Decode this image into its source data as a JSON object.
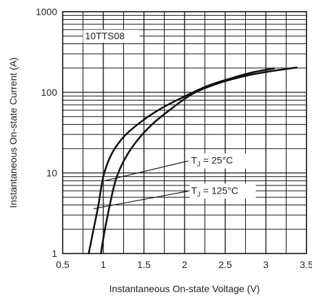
{
  "chart_data": {
    "type": "line",
    "title": "",
    "xlabel": "Instantaneous On-state Voltage (V)",
    "ylabel": "Instantaneous On-state Current (A)",
    "xlim": [
      0.5,
      3.5
    ],
    "ylim": [
      1,
      1000
    ],
    "yscale": "log",
    "grid": true,
    "x_ticks": [
      "0.5",
      "1",
      "1.5",
      "2",
      "2.5",
      "3",
      "3.5"
    ],
    "y_ticks": [
      "1",
      "10",
      "100",
      "1000"
    ],
    "part_label": "10TTS08",
    "series": [
      {
        "name": "TJ = 25°C",
        "label_main": "T",
        "label_sub": "J",
        "label_rest": " = 25°C",
        "points": [
          [
            0.82,
            1
          ],
          [
            0.88,
            2
          ],
          [
            0.94,
            4
          ],
          [
            1.0,
            9
          ],
          [
            1.1,
            17
          ],
          [
            1.25,
            28
          ],
          [
            1.45,
            42
          ],
          [
            1.7,
            62
          ],
          [
            2.0,
            89
          ],
          [
            2.3,
            122
          ],
          [
            2.6,
            152
          ],
          [
            2.85,
            178
          ],
          [
            3.1,
            198
          ]
        ]
      },
      {
        "name": "TJ = 125°C",
        "label_main": "T",
        "label_sub": "J",
        "label_rest": " = 125°C",
        "points": [
          [
            0.97,
            1
          ],
          [
            1.02,
            2
          ],
          [
            1.08,
            4
          ],
          [
            1.15,
            8
          ],
          [
            1.25,
            14
          ],
          [
            1.4,
            24
          ],
          [
            1.6,
            40
          ],
          [
            1.85,
            64
          ],
          [
            2.1,
            96
          ],
          [
            2.4,
            128
          ],
          [
            2.75,
            160
          ],
          [
            3.05,
            182
          ],
          [
            3.38,
            203
          ]
        ]
      }
    ]
  }
}
